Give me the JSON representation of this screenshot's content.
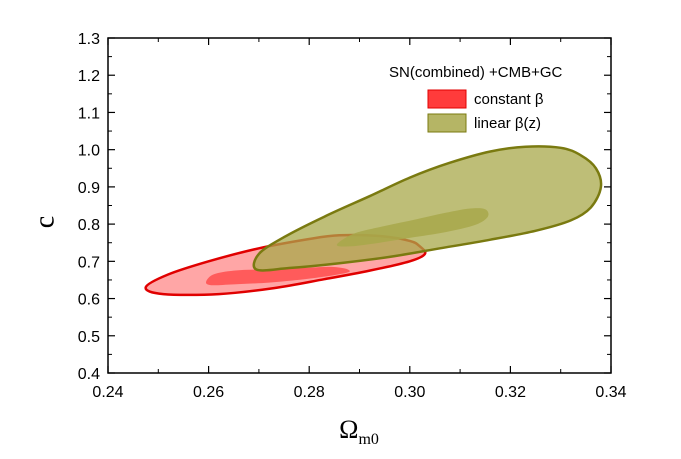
{
  "chart_data": {
    "type": "contour",
    "title": "",
    "xlabel": "Ω",
    "xlabel_sub": "m0",
    "ylabel": "c",
    "xlim": [
      0.24,
      0.34
    ],
    "ylim": [
      0.4,
      1.3
    ],
    "xticks": [
      "0.24",
      "0.26",
      "0.28",
      "0.30",
      "0.32",
      "0.34"
    ],
    "yticks": [
      "0.4",
      "0.5",
      "0.6",
      "0.7",
      "0.8",
      "0.9",
      "1.0",
      "1.1",
      "1.2",
      "1.3"
    ],
    "grid": false,
    "legend": {
      "title": "SN(combined) +CMB+GC",
      "placement": "top-right",
      "entries": [
        {
          "label": "constant β",
          "color": "#ff3b3b"
        },
        {
          "label": "linear β(z)",
          "color": "#a8a84a"
        }
      ]
    },
    "series": [
      {
        "name": "constant β",
        "fill_color": "#ff4d4d",
        "edge_color": "#e00000",
        "contours": [
          {
            "level": "outer",
            "opacity": 0.5,
            "points": [
              [
                0.2475,
                0.63
              ],
              [
                0.252,
                0.665
              ],
              [
                0.26,
                0.7
              ],
              [
                0.27,
                0.735
              ],
              [
                0.28,
                0.76
              ],
              [
                0.286,
                0.77
              ],
              [
                0.294,
                0.768
              ],
              [
                0.3,
                0.755
              ],
              [
                0.302,
                0.74
              ],
              [
                0.303,
                0.72
              ],
              [
                0.3,
                0.7
              ],
              [
                0.292,
                0.675
              ],
              [
                0.283,
                0.652
              ],
              [
                0.273,
                0.628
              ],
              [
                0.262,
                0.612
              ],
              [
                0.251,
                0.612
              ]
            ]
          },
          {
            "level": "inner",
            "opacity": 0.85,
            "points": [
              [
                0.2595,
                0.645
              ],
              [
                0.261,
                0.665
              ],
              [
                0.265,
                0.675
              ],
              [
                0.27,
                0.678
              ],
              [
                0.275,
                0.68
              ],
              [
                0.28,
                0.683
              ],
              [
                0.284,
                0.685
              ],
              [
                0.287,
                0.681
              ],
              [
                0.288,
                0.672
              ],
              [
                0.285,
                0.663
              ],
              [
                0.279,
                0.652
              ],
              [
                0.272,
                0.643
              ],
              [
                0.265,
                0.638
              ],
              [
                0.2605,
                0.636
              ]
            ]
          }
        ]
      },
      {
        "name": "linear β(z)",
        "fill_color": "#a8a84a",
        "edge_color": "#7a7a10",
        "contours": [
          {
            "level": "outer",
            "opacity": 0.75,
            "points": [
              [
                0.2695,
                0.678
              ],
              [
                0.27,
                0.72
              ],
              [
                0.275,
                0.765
              ],
              [
                0.283,
                0.82
              ],
              [
                0.292,
                0.875
              ],
              [
                0.3,
                0.925
              ],
              [
                0.308,
                0.965
              ],
              [
                0.316,
                0.995
              ],
              [
                0.323,
                1.008
              ],
              [
                0.33,
                1.005
              ],
              [
                0.334,
                0.985
              ],
              [
                0.337,
                0.95
              ],
              [
                0.338,
                0.9
              ],
              [
                0.336,
                0.845
              ],
              [
                0.332,
                0.81
              ],
              [
                0.325,
                0.782
              ],
              [
                0.316,
                0.758
              ],
              [
                0.306,
                0.735
              ],
              [
                0.296,
                0.712
              ],
              [
                0.286,
                0.695
              ],
              [
                0.276,
                0.682
              ]
            ]
          },
          {
            "level": "inner",
            "opacity": 0.85,
            "points": [
              [
                0.2855,
                0.745
              ],
              [
                0.289,
                0.775
              ],
              [
                0.295,
                0.795
              ],
              [
                0.301,
                0.812
              ],
              [
                0.307,
                0.83
              ],
              [
                0.312,
                0.842
              ],
              [
                0.315,
                0.84
              ],
              [
                0.3155,
                0.82
              ],
              [
                0.313,
                0.798
              ],
              [
                0.307,
                0.778
              ],
              [
                0.3,
                0.763
              ],
              [
                0.293,
                0.748
              ],
              [
                0.288,
                0.74
              ]
            ]
          }
        ]
      }
    ]
  }
}
